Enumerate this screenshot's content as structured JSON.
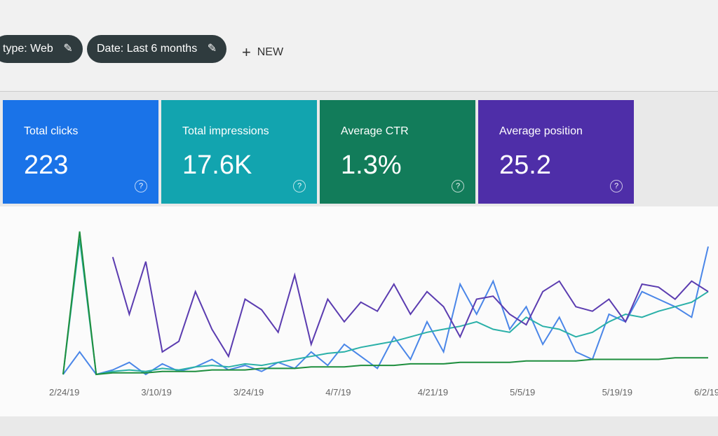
{
  "filters": [
    "type: Web",
    "Date: Last 6 months"
  ],
  "new_button": "NEW",
  "chart_data": {
    "type": "line",
    "xticks": [
      "2/24/19",
      "3/10/19",
      "3/24/19",
      "4/7/19",
      "4/21/19",
      "5/5/19",
      "5/19/19",
      "6/2/19"
    ],
    "ylim": [
      0,
      100
    ],
    "series": [
      {
        "name": "Total clicks",
        "summary": "223",
        "card": "#1a73e8",
        "color": "#4a86e8",
        "values": [
          0,
          15,
          0,
          3,
          8,
          0,
          7,
          2,
          5,
          10,
          3,
          6,
          2,
          8,
          4,
          15,
          6,
          20,
          12,
          4,
          25,
          10,
          35,
          15,
          60,
          40,
          62,
          30,
          45,
          20,
          38,
          15,
          10,
          40,
          35,
          55,
          50,
          45,
          38,
          85
        ]
      },
      {
        "name": "Total impressions",
        "summary": "17.6K",
        "card": "#12a4af",
        "color": "#2ab0a8",
        "values": [
          0,
          90,
          0,
          2,
          3,
          2,
          4,
          3,
          5,
          6,
          5,
          7,
          6,
          8,
          10,
          12,
          14,
          15,
          18,
          20,
          22,
          25,
          28,
          30,
          32,
          35,
          30,
          28,
          38,
          32,
          30,
          25,
          28,
          35,
          40,
          38,
          42,
          45,
          48,
          55
        ]
      },
      {
        "name": "Average CTR",
        "summary": "1.3%",
        "card": "#127c5a",
        "color": "#1e8e3e",
        "values": [
          0,
          95,
          0,
          1,
          1,
          1,
          2,
          2,
          2,
          3,
          3,
          3,
          4,
          4,
          4,
          5,
          5,
          5,
          6,
          6,
          6,
          7,
          7,
          7,
          8,
          8,
          8,
          8,
          9,
          9,
          9,
          9,
          10,
          10,
          10,
          10,
          10,
          11,
          11,
          11
        ]
      },
      {
        "name": "Average position",
        "summary": "25.2",
        "card": "#4e2ea8",
        "color": "#5b3cb0",
        "values": [
          null,
          null,
          null,
          78,
          40,
          75,
          15,
          22,
          55,
          30,
          12,
          50,
          43,
          28,
          66,
          20,
          50,
          35,
          48,
          42,
          60,
          40,
          55,
          45,
          25,
          50,
          52,
          40,
          33,
          55,
          62,
          45,
          42,
          50,
          35,
          60,
          58,
          50,
          62,
          55
        ]
      }
    ]
  }
}
